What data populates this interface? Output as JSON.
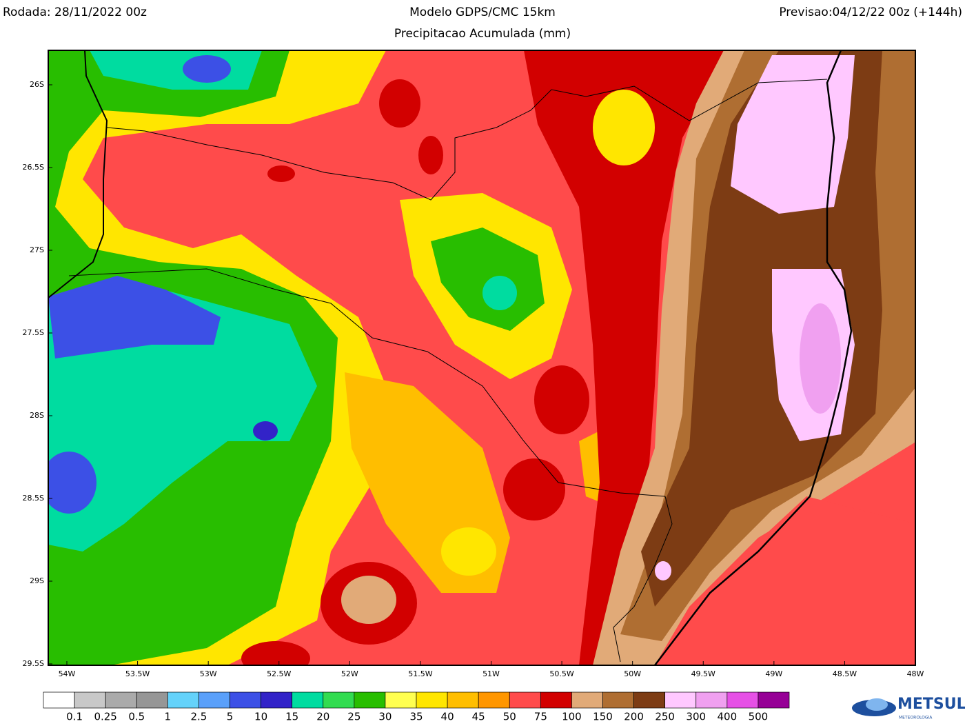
{
  "header": {
    "run": "Rodada: 28/11/2022 00z",
    "model": "Modelo GDPS/CMC 15km",
    "forecast": "Previsao:04/12/22 00z (+144h)",
    "subtitle": "Precipitacao Acumulada (mm)"
  },
  "map": {
    "lat_labels": [
      "26S",
      "26.5S",
      "27S",
      "27.5S",
      "28S",
      "28.5S",
      "29S",
      "29.5S"
    ],
    "lon_labels": [
      "54W",
      "53.5W",
      "53W",
      "52.5W",
      "52W",
      "51.5W",
      "51W",
      "50.5W",
      "50W",
      "49.5W",
      "49W",
      "48.5W",
      "48W"
    ]
  },
  "colorbar": {
    "colors": [
      "#ffffff",
      "#c8c8c8",
      "#aaaaaa",
      "#969696",
      "#64d2fa",
      "#5aa0fa",
      "#3c50e6",
      "#3223c8",
      "#00dca0",
      "#32dc50",
      "#28be00",
      "#ffff50",
      "#ffe600",
      "#ffbe00",
      "#ff9600",
      "#ff4b4b",
      "#d20000",
      "#e1aa78",
      "#af6e32",
      "#7d3c14",
      "#ffc8ff",
      "#f0a0f0",
      "#e650e6",
      "#960096"
    ],
    "labels": [
      0.1,
      0.25,
      0.5,
      1,
      2.5,
      5,
      10,
      15,
      20,
      25,
      30,
      35,
      40,
      45,
      50,
      75,
      100,
      150,
      200,
      250,
      300,
      400,
      500
    ]
  },
  "logo": {
    "name": "METSUL",
    "tagline": "METEOROLOGIA"
  }
}
